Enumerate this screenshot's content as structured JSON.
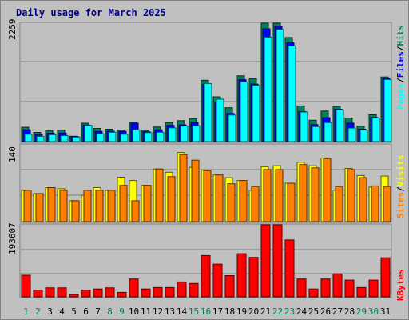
{
  "chart_data": {
    "type": "bar",
    "title": "Daily usage for March 2025",
    "days": [
      "1",
      "2",
      "3",
      "4",
      "5",
      "6",
      "7",
      "8",
      "9",
      "10",
      "11",
      "12",
      "13",
      "14",
      "15",
      "16",
      "17",
      "18",
      "19",
      "20",
      "21",
      "22",
      "23",
      "24",
      "25",
      "26",
      "27",
      "28",
      "29",
      "30",
      "31"
    ],
    "weekend_days": [
      "1",
      "2",
      "8",
      "9",
      "15",
      "16",
      "22",
      "23",
      "29",
      "30"
    ],
    "panels": [
      {
        "id": "usage",
        "ymax": 2259,
        "ymax_label": "2259",
        "legend": [
          "Pages",
          "Files",
          "Hits"
        ],
        "legend_colors": [
          "#00ffff",
          "#0000ff",
          "#00805c"
        ],
        "series": [
          {
            "name": "Hits",
            "color": "#00805c",
            "values": [
              275,
              176,
              205,
              218,
              102,
              351,
              252,
              236,
              222,
              373,
              217,
              278,
              364,
              400,
              440,
              1170,
              855,
              645,
              1255,
              1196,
              2259,
              2259,
              1986,
              681,
              407,
              583,
              672,
              451,
              295,
              512,
              1234
            ]
          },
          {
            "name": "Files",
            "color": "#0000ff",
            "values": [
              225,
              133,
              160,
              162,
              98,
              315,
              195,
              198,
              196,
              351,
              187,
              225,
              309,
              319,
              360,
              1091,
              742,
              537,
              1181,
              1098,
              2152,
              2205,
              1883,
              573,
              323,
              456,
              618,
              351,
              236,
              459,
              1205
            ]
          },
          {
            "name": "Pages",
            "color": "#00ffff",
            "values": [
              141,
              100,
              131,
              115,
              87,
              309,
              149,
              178,
              141,
              224,
              171,
              179,
              261,
              296,
              304,
              1108,
              809,
              507,
              1140,
              1075,
              1993,
              2140,
              1825,
              565,
              285,
              361,
              609,
              258,
              222,
              451,
              1185
            ]
          }
        ]
      },
      {
        "id": "visits",
        "ymax": 140,
        "ymax_label": "140",
        "legend": [
          "Sites",
          "Visits"
        ],
        "legend_colors": [
          "#ff8000",
          "#ffff00"
        ],
        "series": [
          {
            "name": "Visits",
            "color": "#ffff00",
            "values": [
              57,
              51,
              62,
              60,
              38,
              48,
              62,
              57,
              81,
              75,
              66,
              96,
              90,
              126,
              99,
              94,
              85,
              80,
              75,
              57,
              100,
              102,
              70,
              108,
              102,
              116,
              57,
              97,
              84,
              63,
              83
            ]
          },
          {
            "name": "Sites",
            "color": "#ff8000",
            "values": [
              57,
              51,
              62,
              57,
              38,
              57,
              57,
              57,
              66,
              38,
              66,
              96,
              82,
              122,
              112,
              93,
              85,
              69,
              75,
              64,
              95,
              95,
              70,
              104,
              98,
              115,
              64,
              95,
              80,
              65,
              64
            ]
          }
        ]
      },
      {
        "id": "kbytes",
        "ymax": 193607,
        "ymax_label": "193607",
        "legend": [
          "KBytes"
        ],
        "legend_colors": [
          "#ff0000"
        ],
        "series": [
          {
            "name": "KBytes",
            "color": "#ff0000",
            "values": [
              58000,
              18000,
              24000,
              24000,
              6500,
              18000,
              21000,
              24000,
              12000,
              48000,
              21000,
              25000,
              25000,
              40000,
              36000,
              111000,
              88000,
              57000,
              116000,
              106000,
              193607,
              193607,
              153000,
              48000,
              21000,
              48000,
              62000,
              45000,
              25000,
              45000,
              105000
            ]
          }
        ]
      }
    ]
  }
}
